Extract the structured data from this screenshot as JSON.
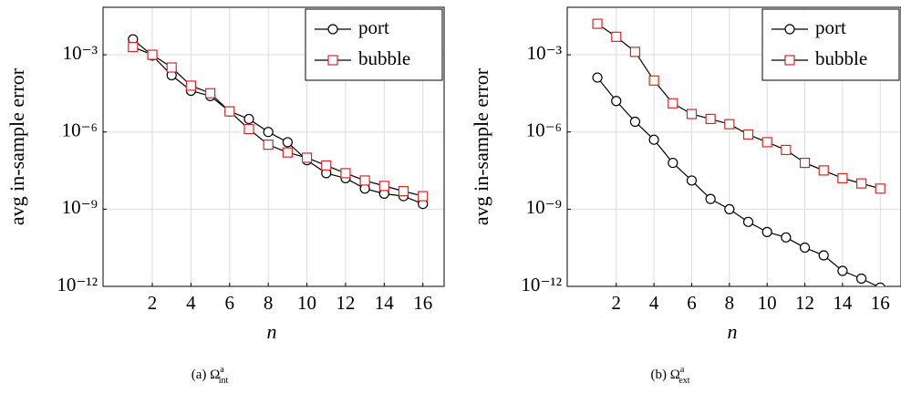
{
  "chart_data": [
    {
      "type": "line",
      "log_y": true,
      "grid": true,
      "legend": "upper right",
      "ylabel": "avg in-sample error",
      "xlabel": "n",
      "caption": {
        "prefix": "(a) Ω",
        "sup": "a",
        "sub": "int"
      },
      "x": [
        1,
        2,
        3,
        4,
        5,
        6,
        7,
        8,
        9,
        10,
        11,
        12,
        13,
        14,
        15,
        16
      ],
      "xlim": [
        -0.55,
        17.1
      ],
      "xticks": [
        2,
        4,
        6,
        8,
        10,
        12,
        14,
        16
      ],
      "ylim": [
        1e-12,
        0.07
      ],
      "yticks": [
        {
          "value": 1e-12,
          "label": "10⁻¹²"
        },
        {
          "value": 1e-09,
          "label": "10⁻⁹"
        },
        {
          "value": 1e-06,
          "label": "10⁻⁶"
        },
        {
          "value": 0.001,
          "label": "10⁻³"
        }
      ],
      "series": [
        {
          "name": "port",
          "marker": "circle",
          "color": "#000000",
          "line_color": "#000000",
          "values": [
            0.004,
            0.00093,
            0.00016,
            4e-05,
            2.5e-05,
            6.3e-06,
            3.2e-06,
            1e-06,
            4e-07,
            8e-08,
            2.5e-08,
            1.6e-08,
            6.3e-09,
            4e-09,
            3.2e-09,
            1.6e-09
          ]
        },
        {
          "name": "bubble",
          "marker": "square",
          "color": "#d62728",
          "line_color": "#000000",
          "values": [
            0.002,
            0.001,
            0.00032,
            6.3e-05,
            3.2e-05,
            6.3e-06,
            1.3e-06,
            3.2e-07,
            1.6e-07,
            1e-07,
            5e-08,
            2.5e-08,
            1.3e-08,
            8e-09,
            5e-09,
            3.2e-09
          ]
        }
      ]
    },
    {
      "type": "line",
      "log_y": true,
      "grid": true,
      "legend": "upper right",
      "ylabel": "avg in-sample error",
      "xlabel": "n",
      "caption": {
        "prefix": "(b) Ω",
        "sup": "a",
        "sub": "ext"
      },
      "x": [
        1,
        2,
        3,
        4,
        5,
        6,
        7,
        8,
        9,
        10,
        11,
        12,
        13,
        14,
        15,
        16
      ],
      "xlim": [
        -0.6,
        17.1
      ],
      "xticks": [
        2,
        4,
        6,
        8,
        10,
        12,
        14,
        16
      ],
      "ylim": [
        1e-12,
        0.07
      ],
      "yticks": [
        {
          "value": 1e-12,
          "label": "10⁻¹²"
        },
        {
          "value": 1e-09,
          "label": "10⁻⁹"
        },
        {
          "value": 1e-06,
          "label": "10⁻⁶"
        },
        {
          "value": 0.001,
          "label": "10⁻³"
        }
      ],
      "series": [
        {
          "name": "port",
          "marker": "circle",
          "color": "#000000",
          "line_color": "#000000",
          "values": [
            0.00013,
            1.6e-05,
            2.5e-06,
            5e-07,
            6.3e-08,
            1.3e-08,
            2.5e-09,
            1e-09,
            3.2e-10,
            1.3e-10,
            8e-11,
            3.2e-11,
            1.6e-11,
            4e-12,
            2e-12,
            9e-13
          ]
        },
        {
          "name": "bubble",
          "marker": "square",
          "color": "#d62728",
          "line_color": "#000000",
          "values": [
            0.016,
            0.005,
            0.0013,
            0.0001,
            1.3e-05,
            5e-06,
            3.2e-06,
            2e-06,
            8e-07,
            4e-07,
            2e-07,
            6.3e-08,
            3.2e-08,
            1.6e-08,
            1e-08,
            6.3e-09
          ]
        }
      ]
    }
  ]
}
